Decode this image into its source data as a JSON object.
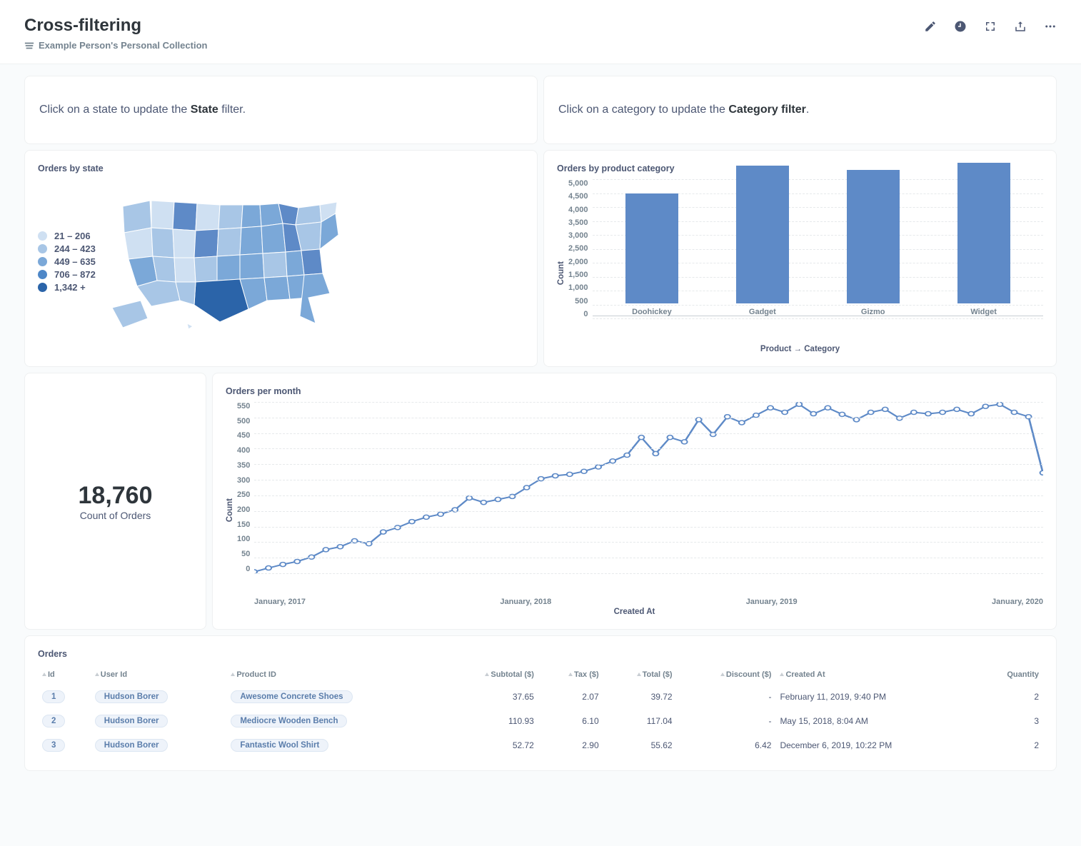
{
  "header": {
    "title": "Cross-filtering",
    "collection": "Example Person's Personal Collection"
  },
  "hints": {
    "state_pre": "Click on a state to update the ",
    "state_bold": "State",
    "state_post": " filter.",
    "category_pre": "Click on a category to update the ",
    "category_bold": "Category filter",
    "category_post": "."
  },
  "map_card": {
    "title": "Orders by state",
    "legend": [
      {
        "label": "21 – 206",
        "color": "#cfe0f2"
      },
      {
        "label": "244 – 423",
        "color": "#a8c6e6"
      },
      {
        "label": "449 – 635",
        "color": "#7ba8d8"
      },
      {
        "label": "706 – 872",
        "color": "#4e87c7"
      },
      {
        "label": "1,342 +",
        "color": "#2b64a9"
      }
    ]
  },
  "bar_chart": {
    "title": "Orders by product category",
    "type": "bar",
    "y_label": "Count",
    "x_label": "Product → Category",
    "y_ticks": [
      "5,000",
      "4,500",
      "4,000",
      "3,500",
      "3,000",
      "2,500",
      "2,000",
      "1,500",
      "1,000",
      "500",
      "0"
    ],
    "ylim": [
      0,
      5000
    ],
    "bar_color": "#5e8ac7",
    "grid_color": "#e6e9eb",
    "categories": [
      "Doohickey",
      "Gadget",
      "Gizmo",
      "Widget"
    ],
    "values": [
      3950,
      4950,
      4800,
      5050
    ]
  },
  "scalar": {
    "value": "18,760",
    "label": "Count of Orders"
  },
  "line_chart": {
    "title": "Orders per month",
    "type": "line",
    "y_label": "Count",
    "x_label": "Created At",
    "y_ticks": [
      "550",
      "500",
      "450",
      "400",
      "350",
      "300",
      "250",
      "200",
      "150",
      "100",
      "50",
      "0"
    ],
    "ylim": [
      0,
      580
    ],
    "x_ticks": [
      "January, 2017",
      "January, 2018",
      "January, 2019",
      "January, 2020"
    ],
    "line_color": "#5e8ac7",
    "marker_fill": "#ffffff",
    "grid_color": "#e6e9eb",
    "points": [
      [
        0,
        5
      ],
      [
        1,
        18
      ],
      [
        2,
        30
      ],
      [
        3,
        40
      ],
      [
        4,
        55
      ],
      [
        5,
        80
      ],
      [
        6,
        90
      ],
      [
        7,
        110
      ],
      [
        8,
        100
      ],
      [
        9,
        140
      ],
      [
        10,
        155
      ],
      [
        11,
        175
      ],
      [
        12,
        190
      ],
      [
        13,
        200
      ],
      [
        14,
        215
      ],
      [
        15,
        255
      ],
      [
        16,
        240
      ],
      [
        17,
        250
      ],
      [
        18,
        260
      ],
      [
        19,
        290
      ],
      [
        20,
        320
      ],
      [
        21,
        330
      ],
      [
        22,
        335
      ],
      [
        23,
        345
      ],
      [
        24,
        360
      ],
      [
        25,
        380
      ],
      [
        26,
        400
      ],
      [
        27,
        460
      ],
      [
        28,
        405
      ],
      [
        29,
        460
      ],
      [
        30,
        445
      ],
      [
        31,
        520
      ],
      [
        32,
        470
      ],
      [
        33,
        530
      ],
      [
        34,
        510
      ],
      [
        35,
        535
      ],
      [
        36,
        560
      ],
      [
        37,
        545
      ],
      [
        38,
        572
      ],
      [
        39,
        540
      ],
      [
        40,
        560
      ],
      [
        41,
        538
      ],
      [
        42,
        520
      ],
      [
        43,
        545
      ],
      [
        44,
        555
      ],
      [
        45,
        525
      ],
      [
        46,
        545
      ],
      [
        47,
        540
      ],
      [
        48,
        545
      ],
      [
        49,
        555
      ],
      [
        50,
        540
      ],
      [
        51,
        565
      ],
      [
        52,
        572
      ],
      [
        53,
        545
      ],
      [
        54,
        530
      ],
      [
        55,
        340
      ]
    ],
    "x_count": 56
  },
  "orders_table": {
    "title": "Orders",
    "columns": [
      "Id",
      "User Id",
      "Product ID",
      "Subtotal ($)",
      "Tax ($)",
      "Total ($)",
      "Discount ($)",
      "Created At",
      "Quantity"
    ],
    "rows": [
      {
        "id": "1",
        "user": "Hudson Borer",
        "product": "Awesome Concrete Shoes",
        "subtotal": "37.65",
        "tax": "2.07",
        "total": "39.72",
        "discount": "-",
        "created": "February 11, 2019, 9:40 PM",
        "qty": "2"
      },
      {
        "id": "2",
        "user": "Hudson Borer",
        "product": "Mediocre Wooden Bench",
        "subtotal": "110.93",
        "tax": "6.10",
        "total": "117.04",
        "discount": "-",
        "created": "May 15, 2018, 8:04 AM",
        "qty": "3"
      },
      {
        "id": "3",
        "user": "Hudson Borer",
        "product": "Fantastic Wool Shirt",
        "subtotal": "52.72",
        "tax": "2.90",
        "total": "55.62",
        "discount": "6.42",
        "created": "December 6, 2019, 10:22 PM",
        "qty": "2"
      }
    ]
  }
}
